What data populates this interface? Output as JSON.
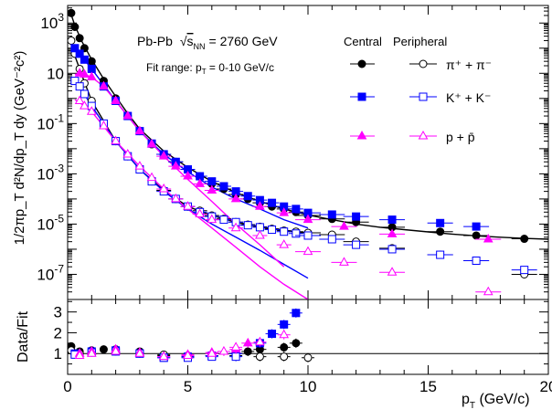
{
  "chart_data": [
    {
      "type": "scatter",
      "panel": "spectra",
      "ylabel": "1/2πp_T d²N/dp_T dy (GeV⁻²c²)",
      "yscale": "log",
      "xlim": [
        0,
        20
      ],
      "ylim": [
        1e-08,
        5000
      ],
      "y_ticks": [
        {
          "v": 1000,
          "m": "10",
          "e": "3"
        },
        {
          "v": 10,
          "m": "10",
          "e": ""
        },
        {
          "v": 0.1,
          "m": "10",
          "e": "-1"
        },
        {
          "v": 0.001,
          "m": "10",
          "e": "-3"
        },
        {
          "v": 1e-05,
          "m": "10",
          "e": "-5"
        },
        {
          "v": 1e-07,
          "m": "10",
          "e": "-7"
        }
      ],
      "annotations": {
        "system": "Pb-Pb",
        "energy_sqrt": "s",
        "energy_sub": "NN",
        "energy_value": "= 2760 GeV",
        "fit_range_prefix": "Fit range: p",
        "fit_range_sub": "T",
        "fit_range_suffix": " = 0-10 GeV/c",
        "legend_central": "Central",
        "legend_peripheral": "Peripheral",
        "legend_pion": "π⁺ + π⁻",
        "legend_kaon": "K⁺ + K⁻",
        "legend_proton": "p + p̄"
      },
      "series": [
        {
          "species": "pion",
          "centrality": "central",
          "marker": "circle-filled",
          "color": "#000000",
          "x": [
            0.15,
            0.3,
            0.5,
            0.7,
            1.0,
            1.5,
            2.0,
            2.5,
            3.0,
            3.5,
            4.0,
            4.5,
            5.0,
            5.5,
            6.0,
            6.5,
            7.0,
            7.5,
            8.0,
            8.5,
            9.0,
            9.5,
            10.0,
            11.0,
            12.0,
            13.5,
            15.5,
            17.0,
            19.0
          ],
          "y": [
            2500,
            700,
            250,
            100,
            30,
            5,
            1.0,
            0.2,
            0.05,
            0.015,
            0.006,
            0.003,
            0.0015,
            0.0008,
            0.0004,
            0.00025,
            0.00015,
            0.0001,
            7e-05,
            5e-05,
            4e-05,
            3e-05,
            2.2e-05,
            1.6e-05,
            1.2e-05,
            7.5e-06,
            5e-06,
            3.5e-06,
            2.6e-06
          ]
        },
        {
          "species": "pion",
          "centrality": "peripheral",
          "marker": "circle-open",
          "color": "#000000",
          "x": [
            0.15,
            0.3,
            0.5,
            0.7,
            1.0,
            1.5,
            2.0,
            2.5,
            3.0,
            3.5,
            4.0,
            4.5,
            5.0,
            5.5,
            6.0,
            6.5,
            7.0,
            7.5,
            8.0,
            8.5,
            9.0,
            9.5,
            10.0,
            11.0,
            12.0,
            13.5,
            15.5,
            17.0,
            19.0
          ],
          "y": [
            200,
            60,
            15,
            4,
            0.8,
            0.1,
            0.02,
            0.005,
            0.0015,
            0.0005,
            0.00022,
            0.0001,
            5e-05,
            3.4e-05,
            2.2e-05,
            1.6e-05,
            1.2e-05,
            9.5e-06,
            7.8e-06,
            6.5e-06,
            5.5e-06,
            5e-06,
            4.5e-06,
            3.8e-06,
            2e-06,
            1.1e-06,
            6e-07,
            3.5e-07,
            1e-07
          ]
        },
        {
          "species": "kaon",
          "centrality": "central",
          "marker": "square-filled",
          "color": "#0000ff",
          "x": [
            0.3,
            0.5,
            0.7,
            1.0,
            1.5,
            2.0,
            2.5,
            3.0,
            3.5,
            4.0,
            4.5,
            5.0,
            5.5,
            6.0,
            6.5,
            7.0,
            7.5,
            8.0,
            8.5,
            9.0,
            9.5,
            10.0,
            11.0,
            12.0,
            13.5,
            15.5,
            17.0
          ],
          "y": [
            100,
            60,
            35,
            15,
            3,
            0.8,
            0.2,
            0.05,
            0.016,
            0.006,
            0.003,
            0.0015,
            0.0008,
            0.0005,
            0.00032,
            0.0002,
            0.00013,
            9e-05,
            7e-05,
            5e-05,
            4e-05,
            2.8e-05,
            2.4e-05,
            2e-05,
            1.5e-05,
            1.1e-05,
            8e-06
          ]
        },
        {
          "species": "kaon",
          "centrality": "peripheral",
          "marker": "square-open",
          "color": "#0000ff",
          "x": [
            0.3,
            0.5,
            0.7,
            1.0,
            1.5,
            2.0,
            2.5,
            3.0,
            3.5,
            4.0,
            4.5,
            5.0,
            5.5,
            6.0,
            6.5,
            7.0,
            7.5,
            8.0,
            8.5,
            9.0,
            9.5,
            10.0,
            11.0,
            12.0,
            13.5,
            15.5,
            17.0,
            19.0
          ],
          "y": [
            5,
            3,
            1.5,
            0.5,
            0.1,
            0.02,
            0.005,
            0.0015,
            0.0005,
            0.0002,
            0.0001,
            5e-05,
            3e-05,
            2e-05,
            1.5e-05,
            1.2e-05,
            9e-06,
            7.5e-06,
            6e-06,
            5e-06,
            4.2e-06,
            3.5e-06,
            2.5e-06,
            1.5e-06,
            1e-06,
            6e-07,
            3.5e-07,
            1.5e-07
          ]
        },
        {
          "species": "proton",
          "centrality": "central",
          "marker": "triangle-filled",
          "color": "#ff00ff",
          "x": [
            0.5,
            0.7,
            1.0,
            1.5,
            2.0,
            2.5,
            3.0,
            3.5,
            4.0,
            4.5,
            5.0,
            5.5,
            6.0,
            7.0,
            8.0,
            9.0,
            10.0,
            11.5,
            13.5,
            17.5
          ],
          "y": [
            10,
            9,
            7,
            3,
            0.8,
            0.2,
            0.05,
            0.015,
            0.005,
            0.002,
            0.0008,
            0.0004,
            0.00022,
            0.0001,
            5e-05,
            2.8e-05,
            1.5e-05,
            8e-06,
            4e-06,
            2.5e-06
          ]
        },
        {
          "species": "proton",
          "centrality": "peripheral",
          "marker": "triangle-open",
          "color": "#ff00ff",
          "x": [
            0.5,
            0.7,
            1.0,
            1.5,
            2.0,
            2.5,
            3.0,
            3.5,
            4.0,
            4.5,
            5.0,
            5.5,
            6.0,
            7.0,
            8.0,
            9.0,
            10.0,
            11.5,
            13.5,
            17.5
          ],
          "y": [
            0.8,
            0.5,
            0.3,
            0.08,
            0.02,
            0.006,
            0.002,
            0.0007,
            0.00025,
            0.0001,
            5e-05,
            2.5e-05,
            1.5e-05,
            7e-06,
            3.5e-06,
            1.5e-06,
            8e-07,
            3e-07,
            1.2e-07,
            2e-08
          ]
        }
      ],
      "fits": [
        {
          "species": "pion",
          "centrality": "central",
          "color": "#000000",
          "x": [
            0.1,
            0.3,
            0.6,
            1.0,
            1.5,
            2.0,
            2.5,
            3.0,
            4.0,
            5.0,
            6.0,
            7.0,
            8.0,
            9.0,
            10.0,
            11.0,
            12.0,
            13.0,
            14.0,
            15.0,
            16.0,
            17.0,
            18.0,
            19.0,
            20.0
          ],
          "y": [
            3000,
            800,
            180,
            35,
            6,
            1.2,
            0.25,
            0.06,
            0.008,
            0.0018,
            0.0005,
            0.00018,
            8e-05,
            4e-05,
            2.3e-05,
            1.5e-05,
            1e-05,
            7.5e-06,
            6e-06,
            4.9e-06,
            4e-06,
            3.4e-06,
            3e-06,
            2.7e-06,
            2.5e-06
          ]
        },
        {
          "species": "pion",
          "centrality": "peripheral",
          "color": "#000000",
          "x": [
            0.1,
            0.3,
            0.6,
            1.0,
            2.0,
            3.0,
            4.0,
            5.0,
            6.0,
            7.0,
            8.0,
            9.0,
            10.0
          ],
          "y": [
            250,
            50,
            8,
            0.8,
            0.02,
            0.0015,
            0.00022,
            5e-05,
            2.2e-05,
            1.2e-05,
            7.8e-06,
            5.5e-06,
            4.5e-06
          ]
        },
        {
          "species": "kaon",
          "centrality": "central",
          "color": "#0000ff",
          "x": [
            0.2,
            0.5,
            1.0,
            2.0,
            3.0,
            4.0,
            5.0,
            6.0,
            7.0,
            8.0,
            9.0,
            10.0
          ],
          "y": [
            120,
            60,
            15,
            0.8,
            0.05,
            0.006,
            0.0012,
            0.0003,
            0.0001,
            4e-05,
            1.5e-05,
            7e-06
          ]
        },
        {
          "species": "kaon",
          "centrality": "peripheral",
          "color": "#0000ff",
          "x": [
            0.2,
            0.5,
            1.0,
            2.0,
            3.0,
            4.0,
            5.0,
            6.0,
            7.0,
            8.0,
            9.0,
            10.0
          ],
          "y": [
            6,
            3,
            0.5,
            0.02,
            0.0015,
            0.0002,
            4e-05,
            1e-05,
            3e-06,
            9e-07,
            2.5e-07,
            7e-08
          ]
        },
        {
          "species": "proton",
          "centrality": "central",
          "color": "#ff00ff",
          "x": [
            0.3,
            0.7,
            1.0,
            1.5,
            2.0,
            3.0,
            4.0,
            5.0,
            6.0,
            7.0,
            8.0,
            9.0
          ],
          "y": [
            9,
            9,
            7,
            3,
            0.8,
            0.05,
            0.005,
            0.0006,
            8e-05,
            1e-05,
            1.5e-06,
            2e-07
          ]
        },
        {
          "species": "proton",
          "centrality": "peripheral",
          "color": "#ff00ff",
          "x": [
            0.3,
            0.7,
            1.0,
            2.0,
            3.0,
            4.0,
            5.0,
            6.0,
            7.0,
            8.0,
            9.0,
            10.0
          ],
          "y": [
            0.9,
            0.5,
            0.3,
            0.02,
            0.002,
            0.00025,
            4e-05,
            7e-06,
            1.2e-06,
            2e-07,
            4e-08,
            1e-08
          ]
        }
      ]
    },
    {
      "type": "scatter",
      "panel": "ratio",
      "ylabel": "Data/Fit",
      "xlabel_prefix": "p",
      "xlabel_sub": "T",
      "xlabel_suffix": " (GeV/c)",
      "xlim": [
        0,
        20
      ],
      "ylim": [
        0,
        3.6
      ],
      "x_ticks": [
        "0",
        "5",
        "10",
        "15",
        "20"
      ],
      "y_ticks": [
        "1",
        "2",
        "3"
      ],
      "reference_line": 1,
      "series": [
        {
          "species": "pion",
          "centrality": "central",
          "marker": "circle-filled",
          "color": "#000000",
          "x": [
            0.15,
            0.5,
            1.0,
            1.5,
            2.0,
            3.0,
            4.0,
            5.0,
            6.0,
            7.0,
            7.5,
            8.0,
            9.0,
            9.5
          ],
          "y": [
            1.35,
            1.1,
            1.15,
            1.2,
            1.2,
            1.1,
            0.9,
            0.85,
            0.9,
            1.0,
            1.1,
            1.2,
            1.3,
            1.5
          ]
        },
        {
          "species": "pion",
          "centrality": "peripheral",
          "marker": "circle-open",
          "color": "#000000",
          "x": [
            0.15,
            0.5,
            1.0,
            2.0,
            3.0,
            4.0,
            5.0,
            6.0,
            7.0,
            8.0,
            9.0,
            10.0
          ],
          "y": [
            1.15,
            1.0,
            1.05,
            1.1,
            1.0,
            0.95,
            0.9,
            0.9,
            0.9,
            0.85,
            0.85,
            0.8
          ]
        },
        {
          "species": "kaon",
          "centrality": "central",
          "marker": "square-filled",
          "color": "#0000ff",
          "x": [
            0.3,
            1.0,
            2.0,
            3.0,
            4.0,
            5.0,
            6.0,
            7.0,
            8.0,
            8.5,
            9.0,
            9.5
          ],
          "y": [
            1.0,
            1.1,
            1.15,
            1.0,
            0.8,
            0.85,
            0.9,
            1.0,
            1.5,
            1.95,
            2.4,
            2.95
          ]
        },
        {
          "species": "kaon",
          "centrality": "peripheral",
          "marker": "square-open",
          "color": "#0000ff",
          "x": [
            0.3,
            1.0,
            2.0,
            3.0,
            4.0,
            5.0,
            6.0,
            7.0
          ],
          "y": [
            0.95,
            1.05,
            1.1,
            1.0,
            0.8,
            0.8,
            0.85,
            0.85
          ]
        },
        {
          "species": "proton",
          "centrality": "central",
          "marker": "triangle-filled",
          "color": "#ff00ff",
          "x": [
            0.5,
            1.0,
            2.0,
            3.0,
            4.0,
            5.0,
            6.0,
            7.0,
            7.5
          ],
          "y": [
            1.0,
            1.1,
            1.2,
            1.05,
            0.85,
            0.95,
            1.05,
            1.2,
            1.5
          ]
        },
        {
          "species": "proton",
          "centrality": "peripheral",
          "marker": "triangle-open",
          "color": "#ff00ff",
          "x": [
            0.5,
            1.0,
            2.0,
            3.0,
            4.0,
            5.0,
            6.0,
            6.5,
            7.0,
            8.0,
            9.0
          ],
          "y": [
            0.9,
            1.0,
            1.1,
            1.0,
            0.85,
            0.9,
            1.0,
            1.1,
            1.3,
            1.55,
            1.9
          ]
        }
      ]
    }
  ]
}
